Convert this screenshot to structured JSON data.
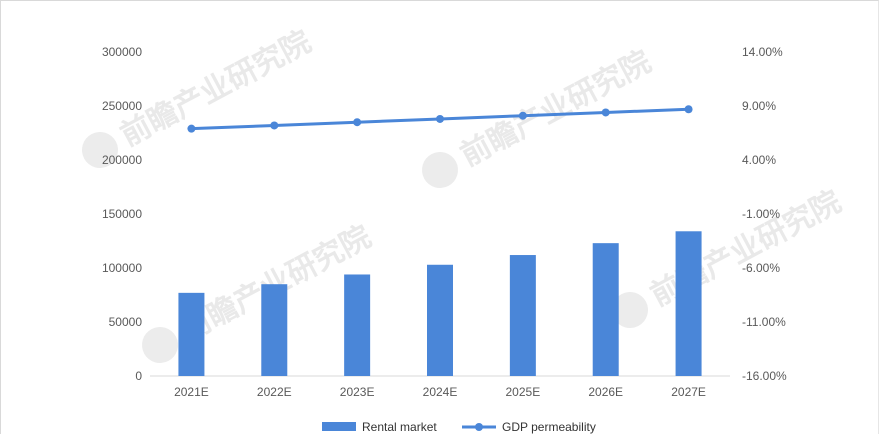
{
  "chart_data": {
    "type": "bar",
    "categories": [
      "2021E",
      "2022E",
      "2023E",
      "2024E",
      "2025E",
      "2026E",
      "2027E"
    ],
    "series": [
      {
        "name": "Rental market",
        "type": "bar",
        "axis": "left",
        "color": "#4a86d8",
        "values": [
          77000,
          85000,
          94000,
          103000,
          112000,
          123000,
          134000
        ]
      },
      {
        "name": "GDP permeability",
        "type": "line",
        "axis": "right",
        "color": "#4a86d8",
        "values": [
          6.9,
          7.2,
          7.5,
          7.8,
          8.1,
          8.4,
          8.7
        ]
      }
    ],
    "y_left": {
      "lim": [
        0,
        300000
      ],
      "ticks": [
        "0",
        "50000",
        "100000",
        "150000",
        "200000",
        "250000",
        "300000"
      ]
    },
    "y_right": {
      "lim": [
        -16,
        14
      ],
      "unit": "%",
      "ticks": [
        "-16.00%",
        "-11.00%",
        "-6.00%",
        "-1.00%",
        "4.00%",
        "9.00%",
        "14.00%"
      ]
    },
    "grid": false,
    "legend_position": "bottom-center",
    "watermark": "前瞻产业研究院"
  }
}
